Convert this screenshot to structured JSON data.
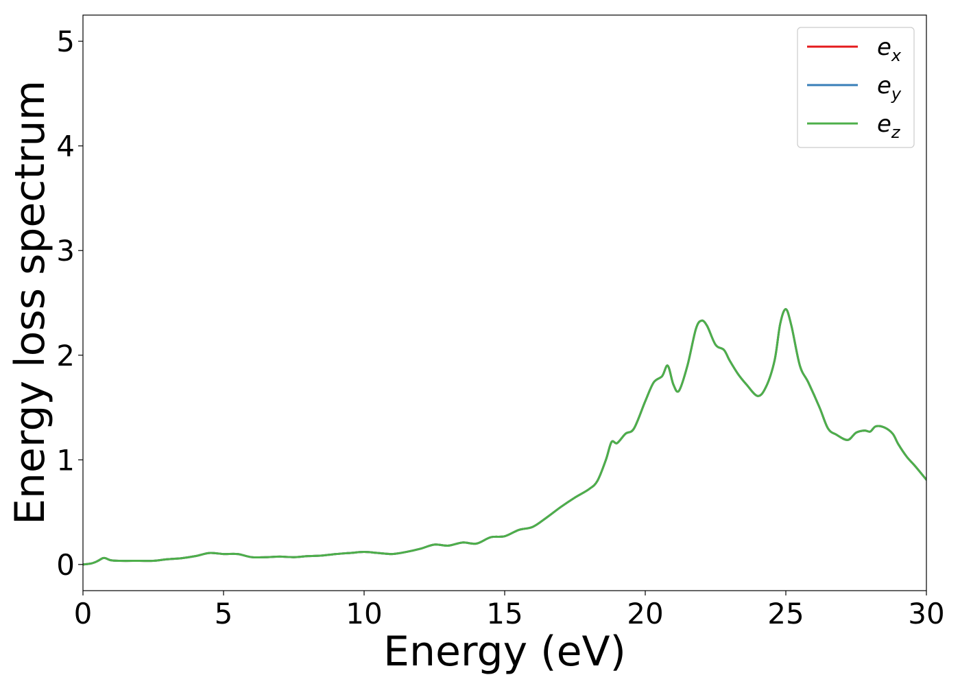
{
  "chart_data": {
    "type": "line",
    "title": "",
    "xlabel": "Energy (eV)",
    "ylabel": "Energy loss spectrum",
    "xlim": [
      0,
      30
    ],
    "ylim": [
      -0.25,
      5.25
    ],
    "xticks": [
      0,
      5,
      10,
      15,
      20,
      25,
      30
    ],
    "yticks": [
      0,
      1,
      2,
      3,
      4,
      5
    ],
    "grid": false,
    "legend_position": "top-right",
    "x": [
      0,
      0.3,
      0.5,
      0.7,
      0.8,
      1.0,
      1.3,
      2.0,
      2.5,
      3.0,
      3.5,
      4.0,
      4.5,
      5.0,
      5.5,
      6.0,
      6.5,
      7.0,
      7.5,
      8.0,
      8.5,
      9.0,
      9.5,
      10.0,
      10.5,
      11.0,
      11.5,
      12.0,
      12.5,
      13.0,
      13.5,
      14.0,
      14.5,
      15.0,
      15.5,
      16.0,
      16.5,
      17.0,
      17.5,
      18.0,
      18.3,
      18.6,
      18.8,
      19.0,
      19.3,
      19.6,
      20.0,
      20.3,
      20.6,
      20.8,
      21.0,
      21.2,
      21.5,
      21.8,
      22.0,
      22.2,
      22.5,
      22.8,
      23.0,
      23.3,
      23.6,
      24.0,
      24.3,
      24.6,
      24.8,
      25.0,
      25.2,
      25.5,
      25.8,
      26.2,
      26.5,
      26.8,
      27.2,
      27.5,
      27.8,
      28.0,
      28.2,
      28.5,
      28.8,
      29.0,
      29.3,
      29.6,
      30.0
    ],
    "series": [
      {
        "name": "e_x",
        "color": "#e41a1c",
        "values": [
          0.0,
          0.01,
          0.03,
          0.06,
          0.06,
          0.04,
          0.035,
          0.035,
          0.035,
          0.05,
          0.06,
          0.08,
          0.11,
          0.1,
          0.1,
          0.07,
          0.07,
          0.075,
          0.07,
          0.08,
          0.085,
          0.1,
          0.11,
          0.12,
          0.11,
          0.1,
          0.12,
          0.15,
          0.19,
          0.18,
          0.21,
          0.2,
          0.26,
          0.27,
          0.33,
          0.36,
          0.45,
          0.55,
          0.64,
          0.72,
          0.8,
          1.0,
          1.17,
          1.16,
          1.25,
          1.3,
          1.56,
          1.74,
          1.8,
          1.9,
          1.72,
          1.66,
          1.9,
          2.25,
          2.33,
          2.28,
          2.1,
          2.05,
          1.95,
          1.82,
          1.72,
          1.61,
          1.7,
          1.95,
          2.3,
          2.44,
          2.28,
          1.9,
          1.74,
          1.5,
          1.3,
          1.24,
          1.19,
          1.26,
          1.28,
          1.27,
          1.32,
          1.31,
          1.25,
          1.15,
          1.03,
          0.94,
          0.81
        ]
      },
      {
        "name": "e_y",
        "color": "#377eb8",
        "values": [
          0.0,
          0.01,
          0.03,
          0.06,
          0.06,
          0.04,
          0.035,
          0.035,
          0.035,
          0.05,
          0.06,
          0.08,
          0.11,
          0.1,
          0.1,
          0.07,
          0.07,
          0.075,
          0.07,
          0.08,
          0.085,
          0.1,
          0.11,
          0.12,
          0.11,
          0.1,
          0.12,
          0.15,
          0.19,
          0.18,
          0.21,
          0.2,
          0.26,
          0.27,
          0.33,
          0.36,
          0.45,
          0.55,
          0.64,
          0.72,
          0.8,
          1.0,
          1.17,
          1.16,
          1.25,
          1.3,
          1.56,
          1.74,
          1.8,
          1.9,
          1.72,
          1.66,
          1.9,
          2.25,
          2.33,
          2.28,
          2.1,
          2.05,
          1.95,
          1.82,
          1.72,
          1.61,
          1.7,
          1.95,
          2.3,
          2.44,
          2.28,
          1.9,
          1.74,
          1.5,
          1.3,
          1.24,
          1.19,
          1.26,
          1.28,
          1.27,
          1.32,
          1.31,
          1.25,
          1.15,
          1.03,
          0.94,
          0.81
        ]
      },
      {
        "name": "e_z",
        "color": "#4daf4a",
        "values": [
          0.0,
          0.01,
          0.03,
          0.06,
          0.06,
          0.04,
          0.035,
          0.035,
          0.035,
          0.05,
          0.06,
          0.08,
          0.11,
          0.1,
          0.1,
          0.07,
          0.07,
          0.075,
          0.07,
          0.08,
          0.085,
          0.1,
          0.11,
          0.12,
          0.11,
          0.1,
          0.12,
          0.15,
          0.19,
          0.18,
          0.21,
          0.2,
          0.26,
          0.27,
          0.33,
          0.36,
          0.45,
          0.55,
          0.64,
          0.72,
          0.8,
          1.0,
          1.17,
          1.16,
          1.25,
          1.3,
          1.56,
          1.74,
          1.8,
          1.9,
          1.72,
          1.66,
          1.9,
          2.25,
          2.33,
          2.28,
          2.1,
          2.05,
          1.95,
          1.82,
          1.72,
          1.61,
          1.7,
          1.95,
          2.3,
          2.44,
          2.28,
          1.9,
          1.74,
          1.5,
          1.3,
          1.24,
          1.19,
          1.26,
          1.28,
          1.27,
          1.32,
          1.31,
          1.25,
          1.15,
          1.03,
          0.94,
          0.81
        ]
      }
    ]
  }
}
